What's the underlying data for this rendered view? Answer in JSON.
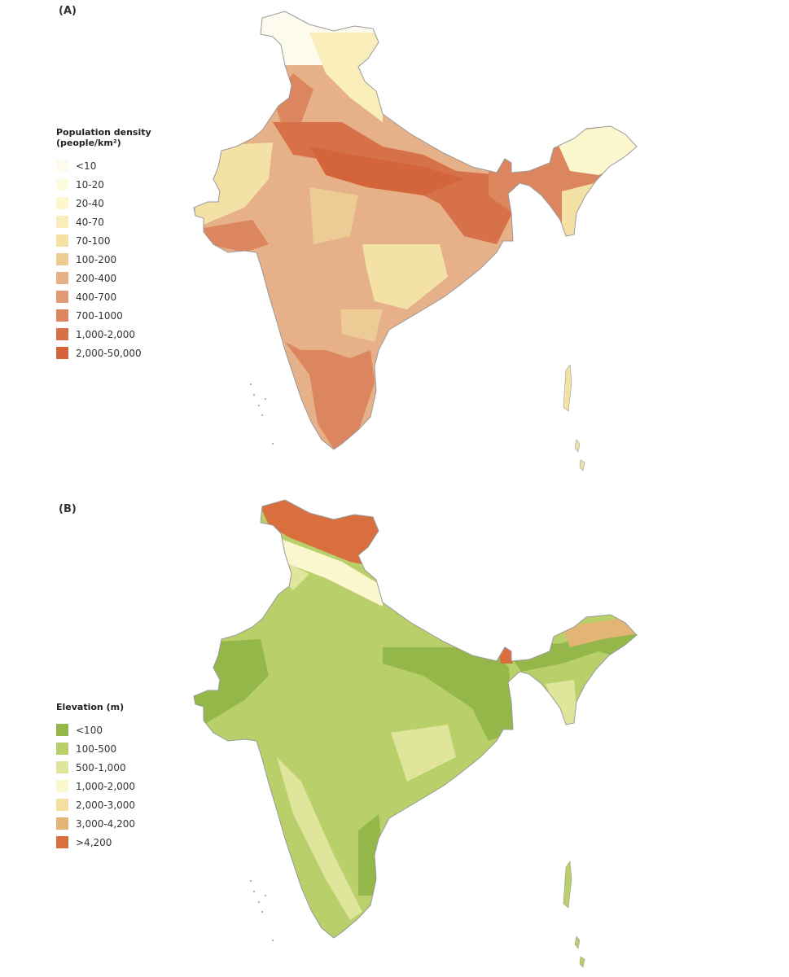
{
  "panel_a": {
    "label": "(A)",
    "legend": {
      "title": "Population density",
      "subtitle": "(people/km²)",
      "items": [
        {
          "label": "<10",
          "color": "#fdfbee"
        },
        {
          "label": "10-20",
          "color": "#fdfbe0"
        },
        {
          "label": "20-40",
          "color": "#fcf7cf"
        },
        {
          "label": "40-70",
          "color": "#f9eeb9"
        },
        {
          "label": "70-100",
          "color": "#f4e1a5"
        },
        {
          "label": "100-200",
          "color": "#edcb95"
        },
        {
          "label": "200-400",
          "color": "#e6b088"
        },
        {
          "label": "400-700",
          "color": "#e09b76"
        },
        {
          "label": "700-1000",
          "color": "#dc8660"
        },
        {
          "label": "1,000-2,000",
          "color": "#d7714a"
        },
        {
          "label": "2,000-50,000",
          "color": "#d4643a"
        }
      ]
    }
  },
  "panel_b": {
    "label": "(B)",
    "legend": {
      "title": "Elevation (m)",
      "items": [
        {
          "label": "<100",
          "color": "#93b748"
        },
        {
          "label": "100-500",
          "color": "#b9cf6a"
        },
        {
          "label": "500-1,000",
          "color": "#dfe59b"
        },
        {
          "label": "1,000-2,000",
          "color": "#fbf7cf"
        },
        {
          "label": "2,000-3,000",
          "color": "#f3dfa0"
        },
        {
          "label": "3,000-4,200",
          "color": "#e3b574"
        },
        {
          "label": ">4,200",
          "color": "#d96f3f"
        }
      ]
    }
  }
}
